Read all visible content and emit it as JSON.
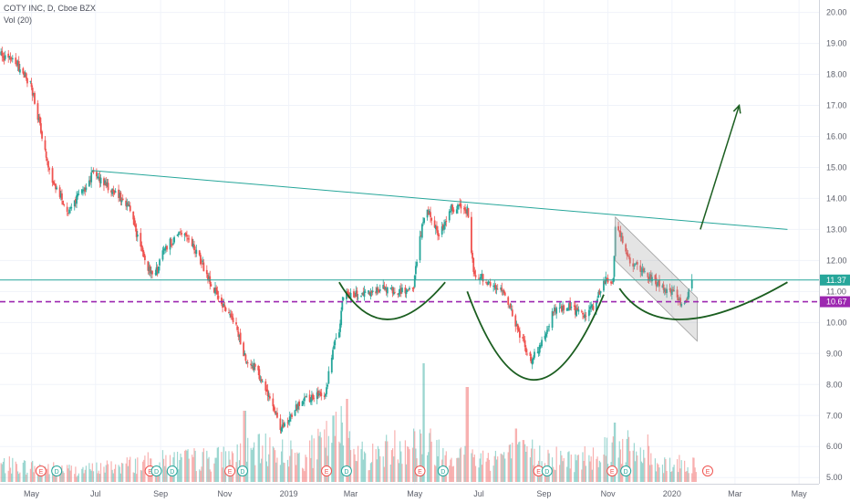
{
  "legend": {
    "symbol_line": "COTY INC, D, Cboe BZX",
    "volume_line": "Vol (20)"
  },
  "chart_data": {
    "type": "candlestick",
    "symbol": "COTY INC",
    "interval": "D",
    "exchange": "Cboe BZX",
    "y_axis": {
      "position": "right",
      "range": [
        4.8,
        20.4
      ],
      "ticks": [
        5,
        6,
        7,
        8,
        9,
        10,
        11,
        12,
        13,
        14,
        15,
        16,
        17,
        18,
        19,
        20
      ],
      "tick_labels": [
        "5.00",
        "6.00",
        "7.00",
        "8.00",
        "9.00",
        "10.00",
        "11.00",
        "12.00",
        "13.00",
        "14.00",
        "15.00",
        "16.00",
        "17.00",
        "18.00",
        "19.00",
        "20.00"
      ]
    },
    "x_axis": {
      "labels": [
        "May",
        "Jul",
        "Sep",
        "Nov",
        "2019",
        "Mar",
        "May",
        "Jul",
        "Sep",
        "Nov",
        "2020",
        "Mar",
        "May"
      ],
      "date_range": [
        "2018-04-01",
        "2020-05-20"
      ],
      "tick_dates": [
        "2018-05-01",
        "2018-07-01",
        "2018-09-01",
        "2018-11-01",
        "2019-01-01",
        "2019-03-01",
        "2019-05-01",
        "2019-07-01",
        "2019-09-01",
        "2019-11-01",
        "2020-01-01",
        "2020-03-01",
        "2020-05-01"
      ]
    },
    "grid": true,
    "price_path": [
      [
        "2018-04-02",
        18.6
      ],
      [
        "2018-04-16",
        18.4
      ],
      [
        "2018-05-01",
        17.6
      ],
      [
        "2018-05-10",
        16.2
      ],
      [
        "2018-05-20",
        14.6
      ],
      [
        "2018-06-05",
        13.6
      ],
      [
        "2018-06-20",
        14.3
      ],
      [
        "2018-06-28",
        14.8
      ],
      [
        "2018-07-15",
        14.3
      ],
      [
        "2018-08-01",
        13.8
      ],
      [
        "2018-08-15",
        12.2
      ],
      [
        "2018-08-25",
        11.4
      ],
      [
        "2018-09-05",
        12.4
      ],
      [
        "2018-09-20",
        12.9
      ],
      [
        "2018-10-05",
        12.3
      ],
      [
        "2018-10-20",
        11.2
      ],
      [
        "2018-11-05",
        10.2
      ],
      [
        "2018-11-12",
        9.9
      ],
      [
        "2018-11-20",
        8.9
      ],
      [
        "2018-12-01",
        8.5
      ],
      [
        "2018-12-15",
        7.5
      ],
      [
        "2018-12-24",
        6.5
      ],
      [
        "2019-01-10",
        7.4
      ],
      [
        "2019-01-25",
        7.6
      ],
      [
        "2019-02-05",
        7.7
      ],
      [
        "2019-02-12",
        9.2
      ],
      [
        "2019-02-18",
        9.7
      ],
      [
        "2019-02-22",
        10.9
      ],
      [
        "2019-03-15",
        10.9
      ],
      [
        "2019-04-01",
        11.1
      ],
      [
        "2019-04-20",
        11.0
      ],
      [
        "2019-04-30",
        11.2
      ],
      [
        "2019-05-05",
        12.6
      ],
      [
        "2019-05-12",
        13.7
      ],
      [
        "2019-05-25",
        12.8
      ],
      [
        "2019-06-05",
        13.7
      ],
      [
        "2019-06-20",
        13.6
      ],
      [
        "2019-06-26",
        11.6
      ],
      [
        "2019-07-10",
        11.3
      ],
      [
        "2019-07-25",
        11.0
      ],
      [
        "2019-08-05",
        9.9
      ],
      [
        "2019-08-20",
        8.8
      ],
      [
        "2019-08-30",
        9.3
      ],
      [
        "2019-09-10",
        10.4
      ],
      [
        "2019-09-25",
        10.5
      ],
      [
        "2019-10-10",
        10.2
      ],
      [
        "2019-10-20",
        10.6
      ],
      [
        "2019-10-28",
        11.4
      ],
      [
        "2019-11-06",
        11.3
      ],
      [
        "2019-11-08",
        13.2
      ],
      [
        "2019-11-20",
        12.1
      ],
      [
        "2019-12-05",
        11.6
      ],
      [
        "2019-12-20",
        11.2
      ],
      [
        "2020-01-05",
        10.9
      ],
      [
        "2020-01-12",
        10.5
      ],
      [
        "2020-01-20",
        11.3
      ]
    ],
    "volume_profile": [
      [
        "2018-04-01",
        0.18
      ],
      [
        "2018-05-10",
        0.15
      ],
      [
        "2018-06-15",
        0.12
      ],
      [
        "2018-08-01",
        0.18
      ],
      [
        "2018-09-05",
        0.22
      ],
      [
        "2018-11-01",
        0.25
      ],
      [
        "2018-12-15",
        0.35
      ],
      [
        "2019-01-15",
        0.25
      ],
      [
        "2019-02-20",
        0.55
      ],
      [
        "2019-03-15",
        0.25
      ],
      [
        "2019-05-01",
        0.45
      ],
      [
        "2019-06-01",
        0.3
      ],
      [
        "2019-07-01",
        0.25
      ],
      [
        "2019-08-20",
        0.3
      ],
      [
        "2019-10-01",
        0.22
      ],
      [
        "2019-11-10",
        0.4
      ],
      [
        "2019-12-20",
        0.2
      ],
      [
        "2020-01-20",
        0.18
      ]
    ],
    "volume_spikes": [
      [
        "2018-11-20",
        0.6
      ],
      [
        "2019-02-25",
        0.7
      ],
      [
        "2019-05-10",
        1.0
      ],
      [
        "2019-06-20",
        0.8
      ],
      [
        "2019-08-05",
        0.45
      ],
      [
        "2019-11-08",
        0.5
      ],
      [
        "2019-12-08",
        0.4
      ]
    ],
    "earnings_markers": [
      {
        "date": "2018-05-10",
        "label": "E"
      },
      {
        "date": "2018-05-25",
        "label": "D"
      },
      {
        "date": "2018-08-22",
        "label": "E"
      },
      {
        "date": "2018-08-28",
        "label": "D"
      },
      {
        "date": "2018-09-12",
        "label": "D"
      },
      {
        "date": "2018-11-06",
        "label": "E"
      },
      {
        "date": "2018-11-18",
        "label": "D"
      },
      {
        "date": "2019-02-06",
        "label": "E"
      },
      {
        "date": "2019-02-25",
        "label": "D"
      },
      {
        "date": "2019-05-06",
        "label": "E"
      },
      {
        "date": "2019-05-28",
        "label": "D"
      },
      {
        "date": "2019-08-27",
        "label": "E"
      },
      {
        "date": "2019-09-04",
        "label": "D"
      },
      {
        "date": "2019-11-05",
        "label": "E"
      },
      {
        "date": "2019-11-18",
        "label": "D"
      },
      {
        "date": "2020-02-04",
        "label": "E"
      }
    ],
    "price_labels": [
      {
        "value": 11.37,
        "text": "11.37",
        "color": "#26a69a"
      },
      {
        "value": 10.67,
        "text": "10.67",
        "color": "#9c27b0"
      }
    ],
    "annotations": {
      "resistance_trendline": {
        "from": [
          "2018-06-28",
          14.9
        ],
        "to": [
          "2020-04-20",
          13.0
        ],
        "color": "#26a69a"
      },
      "support_line": {
        "value": 11.37,
        "color": "#26a69a"
      },
      "dashed_level": {
        "value": 10.67,
        "color": "#9c27b0"
      },
      "arcs": [
        {
          "start": [
            "2019-02-18",
            11.3
          ],
          "bottom": [
            "2019-04-05",
            10.1
          ],
          "end": [
            "2019-05-30",
            11.3
          ],
          "color": "#1b5e20"
        },
        {
          "start": [
            "2019-06-20",
            11.0
          ],
          "bottom": [
            "2019-08-22",
            8.15
          ],
          "end": [
            "2019-10-28",
            10.9
          ],
          "color": "#1b5e20"
        },
        {
          "start": [
            "2019-11-12",
            11.1
          ],
          "bottom": [
            "2020-01-12",
            10.1
          ],
          "end": [
            "2020-04-20",
            11.3
          ],
          "color": "#1b5e20"
        }
      ],
      "channel": {
        "upper": [
          [
            "2019-11-08",
            13.4
          ],
          [
            "2020-01-25",
            10.8
          ]
        ],
        "lower": [
          [
            "2019-11-08",
            12.0
          ],
          [
            "2020-01-25",
            9.4
          ]
        ],
        "color": "#9e9e9e"
      },
      "arrow": {
        "from": [
          "2020-01-28",
          13.0
        ],
        "to": [
          "2020-03-05",
          17.0
        ],
        "color": "#1b5e20"
      }
    }
  }
}
